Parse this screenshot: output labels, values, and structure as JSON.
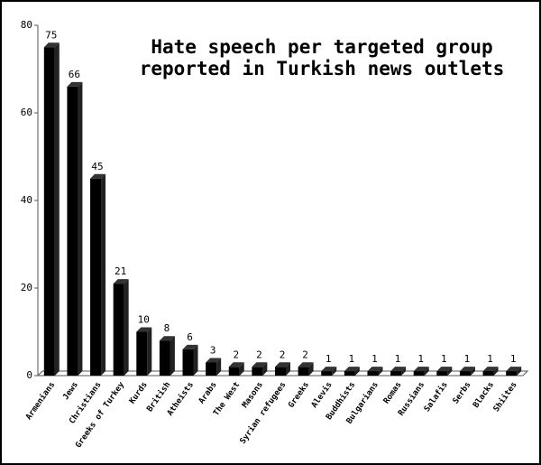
{
  "chart_data": {
    "type": "bar3d",
    "title": "Hate speech per targeted group reported in Turkish news outlets",
    "categories": [
      "Armenians",
      "Jews",
      "Christians",
      "Greeks of Turkey",
      "Kurds",
      "British",
      "Atheists",
      "Arabs",
      "The West",
      "Masons",
      "Syrian refugees",
      "Greeks",
      "Alevis",
      "Buddhists",
      "Bulgarians",
      "Romas",
      "Russians",
      "Salafis",
      "Serbs",
      "Blacks",
      "Shiites"
    ],
    "values": [
      75,
      66,
      45,
      21,
      10,
      8,
      6,
      3,
      2,
      2,
      2,
      2,
      1,
      1,
      1,
      1,
      1,
      1,
      1,
      1,
      1
    ],
    "color": "#000000",
    "ylim": [
      0,
      80
    ],
    "yticks": [
      0,
      20,
      40,
      60,
      80
    ],
    "grid": false
  }
}
